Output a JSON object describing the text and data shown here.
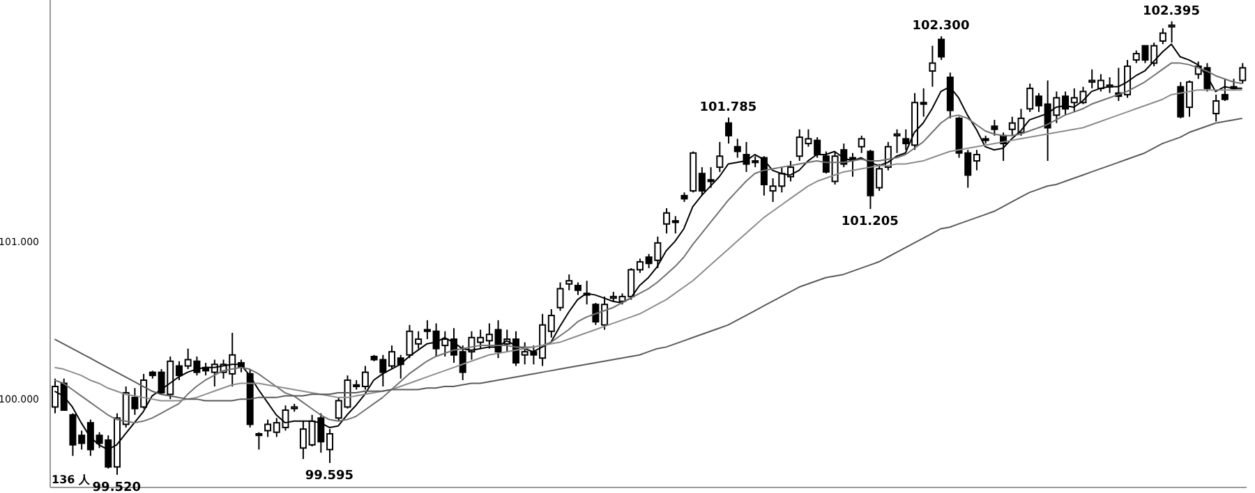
{
  "chart_data": {
    "type": "candlestick",
    "color": "#000000",
    "categories": [
      null,
      null,
      null,
      null,
      null,
      null,
      null,
      null,
      null,
      null,
      null,
      null,
      null,
      null,
      null,
      null,
      null,
      null,
      null,
      null,
      null,
      null,
      null,
      null,
      null,
      null,
      null,
      null,
      null,
      null,
      null,
      null,
      null,
      null,
      null,
      null,
      null,
      null,
      null,
      null,
      null,
      null,
      null,
      null,
      null,
      null,
      null,
      null,
      null,
      null,
      null,
      null,
      null,
      null,
      null,
      null,
      null,
      null,
      null,
      null,
      null,
      null,
      null,
      null,
      null,
      null,
      null,
      null,
      null,
      null,
      null,
      null,
      null,
      null,
      null,
      null,
      null,
      null,
      null,
      null,
      null,
      null,
      null,
      null,
      null,
      null,
      null,
      null,
      null,
      null,
      null,
      null,
      null,
      null,
      null,
      null,
      null,
      null,
      null,
      null,
      null,
      null,
      null,
      null,
      null,
      null,
      null,
      null,
      null,
      null,
      null,
      null,
      null,
      null,
      null,
      null,
      null,
      null,
      null,
      null,
      null,
      null,
      null,
      null,
      null,
      null,
      null,
      null,
      null,
      null,
      null,
      null,
      null,
      null,
      null
    ],
    "ohlc": [
      [
        99.95,
        100.13,
        99.91,
        100.08
      ],
      [
        100.1,
        100.13,
        99.93,
        99.93
      ],
      [
        99.9,
        99.91,
        99.64,
        99.71
      ],
      [
        99.77,
        99.8,
        99.68,
        99.72
      ],
      [
        99.85,
        99.87,
        99.64,
        99.68
      ],
      [
        99.77,
        99.79,
        99.69,
        99.72
      ],
      [
        99.74,
        99.77,
        99.56,
        99.57
      ],
      [
        99.57,
        99.91,
        99.52,
        99.88
      ],
      [
        99.84,
        100.08,
        99.82,
        100.04
      ],
      [
        100.01,
        100.07,
        99.9,
        99.94
      ],
      [
        99.95,
        100.16,
        99.94,
        100.12
      ],
      [
        100.17,
        100.18,
        100.13,
        100.15
      ],
      [
        100.17,
        100.19,
        100.03,
        100.04
      ],
      [
        100.03,
        100.27,
        100.0,
        100.24
      ],
      [
        100.21,
        100.24,
        100.12,
        100.15
      ],
      [
        100.21,
        100.32,
        100.19,
        100.25
      ],
      [
        100.24,
        100.27,
        100.15,
        100.17
      ],
      [
        100.2,
        100.23,
        100.15,
        100.18
      ],
      [
        100.17,
        100.25,
        100.08,
        100.22
      ],
      [
        100.17,
        100.25,
        100.13,
        100.22
      ],
      [
        100.16,
        100.42,
        100.08,
        100.28
      ],
      [
        100.23,
        100.25,
        100.17,
        100.2
      ],
      [
        100.16,
        100.19,
        99.82,
        99.84
      ],
      [
        99.78,
        99.79,
        99.68,
        99.77
      ],
      [
        99.8,
        99.87,
        99.76,
        99.84
      ],
      [
        99.79,
        99.88,
        99.76,
        99.85
      ],
      [
        99.82,
        99.96,
        99.8,
        99.93
      ],
      [
        99.94,
        99.97,
        99.92,
        99.95
      ],
      [
        99.69,
        99.86,
        99.62,
        99.81
      ],
      [
        99.71,
        99.9,
        99.7,
        99.86
      ],
      [
        99.88,
        99.91,
        99.66,
        99.73
      ],
      [
        99.68,
        99.81,
        99.595,
        99.78
      ],
      [
        99.88,
        100.01,
        99.86,
        99.99
      ],
      [
        99.95,
        100.15,
        99.94,
        100.12
      ],
      [
        100.09,
        100.12,
        100.06,
        100.08
      ],
      [
        100.08,
        100.21,
        100.06,
        100.17
      ],
      [
        100.27,
        100.28,
        100.24,
        100.25
      ],
      [
        100.25,
        100.28,
        100.08,
        100.17
      ],
      [
        100.21,
        100.34,
        100.19,
        100.3
      ],
      [
        100.26,
        100.28,
        100.13,
        100.22
      ],
      [
        100.28,
        100.47,
        100.26,
        100.43
      ],
      [
        100.35,
        100.43,
        100.32,
        100.38
      ],
      [
        100.44,
        100.5,
        100.38,
        100.43
      ],
      [
        100.43,
        100.48,
        100.27,
        100.32
      ],
      [
        100.34,
        100.43,
        100.27,
        100.38
      ],
      [
        100.38,
        100.45,
        100.23,
        100.28
      ],
      [
        100.3,
        100.34,
        100.12,
        100.17
      ],
      [
        100.3,
        100.43,
        100.25,
        100.39
      ],
      [
        100.36,
        100.44,
        100.32,
        100.39
      ],
      [
        100.37,
        100.48,
        100.32,
        100.41
      ],
      [
        100.44,
        100.5,
        100.26,
        100.3
      ],
      [
        100.35,
        100.44,
        100.3,
        100.38
      ],
      [
        100.38,
        100.43,
        100.21,
        100.23
      ],
      [
        100.28,
        100.36,
        100.22,
        100.3
      ],
      [
        100.3,
        100.34,
        100.22,
        100.28
      ],
      [
        100.26,
        100.54,
        100.21,
        100.47
      ],
      [
        100.43,
        100.57,
        100.39,
        100.53
      ],
      [
        100.58,
        100.74,
        100.56,
        100.7
      ],
      [
        100.73,
        100.79,
        100.69,
        100.75
      ],
      [
        100.72,
        100.74,
        100.66,
        100.69
      ],
      [
        100.67,
        100.75,
        100.6,
        100.66
      ],
      [
        100.6,
        100.61,
        100.47,
        100.49
      ],
      [
        100.47,
        100.65,
        100.44,
        100.6
      ],
      [
        100.64,
        100.68,
        100.62,
        100.65
      ],
      [
        100.62,
        100.67,
        100.6,
        100.65
      ],
      [
        100.65,
        100.83,
        100.63,
        100.82
      ],
      [
        100.82,
        100.89,
        100.8,
        100.87
      ],
      [
        100.9,
        100.92,
        100.83,
        100.86
      ],
      [
        100.88,
        101.03,
        100.83,
        100.99
      ],
      [
        101.11,
        101.21,
        101.05,
        101.18
      ],
      [
        101.13,
        101.16,
        101.05,
        101.12
      ],
      [
        101.29,
        101.31,
        101.25,
        101.27
      ],
      [
        101.32,
        101.57,
        101.31,
        101.56
      ],
      [
        101.43,
        101.47,
        101.29,
        101.32
      ],
      [
        101.39,
        101.47,
        101.34,
        101.38
      ],
      [
        101.47,
        101.63,
        101.44,
        101.54
      ],
      [
        101.75,
        101.785,
        101.62,
        101.67
      ],
      [
        101.6,
        101.65,
        101.53,
        101.57
      ],
      [
        101.55,
        101.63,
        101.44,
        101.49
      ],
      [
        101.51,
        101.54,
        101.47,
        101.5
      ],
      [
        101.53,
        101.54,
        101.29,
        101.36
      ],
      [
        101.32,
        101.4,
        101.25,
        101.35
      ],
      [
        101.35,
        101.47,
        101.31,
        101.43
      ],
      [
        101.41,
        101.51,
        101.38,
        101.47
      ],
      [
        101.54,
        101.71,
        101.51,
        101.66
      ],
      [
        101.62,
        101.71,
        101.6,
        101.65
      ],
      [
        101.64,
        101.66,
        101.53,
        101.55
      ],
      [
        101.54,
        101.57,
        101.43,
        101.44
      ],
      [
        101.38,
        101.57,
        101.36,
        101.54
      ],
      [
        101.58,
        101.62,
        101.47,
        101.49
      ],
      [
        101.53,
        101.56,
        101.41,
        101.52
      ],
      [
        101.6,
        101.67,
        101.56,
        101.65
      ],
      [
        101.57,
        101.58,
        101.205,
        101.29
      ],
      [
        101.34,
        101.49,
        101.32,
        101.46
      ],
      [
        101.47,
        101.63,
        101.45,
        101.6
      ],
      [
        101.67,
        101.71,
        101.56,
        101.68
      ],
      [
        101.65,
        101.71,
        101.58,
        101.62
      ],
      [
        101.61,
        101.94,
        101.58,
        101.88
      ],
      [
        101.88,
        101.97,
        101.79,
        101.87
      ],
      [
        102.08,
        102.24,
        101.98,
        102.13
      ],
      [
        102.28,
        102.3,
        102.15,
        102.17
      ],
      [
        102.04,
        102.07,
        101.78,
        101.83
      ],
      [
        101.78,
        101.79,
        101.53,
        101.56
      ],
      [
        101.56,
        101.58,
        101.34,
        101.42
      ],
      [
        101.51,
        101.58,
        101.45,
        101.55
      ],
      [
        101.65,
        101.67,
        101.62,
        101.64
      ],
      [
        101.73,
        101.77,
        101.67,
        101.71
      ],
      [
        101.67,
        101.69,
        101.51,
        101.62
      ],
      [
        101.71,
        101.79,
        101.67,
        101.75
      ],
      [
        101.69,
        101.84,
        101.67,
        101.78
      ],
      [
        101.84,
        102.0,
        101.82,
        101.97
      ],
      [
        101.92,
        101.94,
        101.82,
        101.86
      ],
      [
        101.87,
        102.02,
        101.51,
        101.72
      ],
      [
        101.8,
        101.95,
        101.75,
        101.91
      ],
      [
        101.92,
        101.95,
        101.8,
        101.84
      ],
      [
        101.88,
        101.97,
        101.82,
        101.91
      ],
      [
        101.88,
        101.98,
        101.87,
        101.95
      ],
      [
        102.01,
        102.09,
        101.97,
        102.02
      ],
      [
        101.97,
        102.06,
        101.95,
        102.02
      ],
      [
        101.98,
        102.04,
        101.94,
        101.99
      ],
      [
        101.94,
        102.1,
        101.89,
        101.92
      ],
      [
        101.93,
        102.15,
        101.91,
        102.11
      ],
      [
        102.15,
        102.21,
        102.13,
        102.19
      ],
      [
        102.24,
        102.24,
        102.13,
        102.15
      ],
      [
        102.13,
        102.26,
        102.11,
        102.24
      ],
      [
        102.27,
        102.35,
        102.25,
        102.32
      ],
      [
        102.36,
        102.395,
        102.26,
        102.37
      ],
      [
        101.98,
        102.01,
        101.78,
        101.79
      ],
      [
        101.85,
        102.02,
        101.79,
        102.01
      ],
      [
        102.06,
        102.14,
        102.03,
        102.11
      ],
      [
        102.1,
        102.13,
        101.95,
        101.97
      ],
      [
        101.81,
        101.93,
        101.76,
        101.89
      ],
      [
        101.93,
        102.03,
        101.89,
        101.9
      ],
      [
        101.98,
        102.03,
        101.96,
        101.97
      ],
      [
        102.02,
        102.13,
        102.0,
        102.1
      ]
    ],
    "series": [
      {
        "type": "line",
        "color": "#000000",
        "values": [
          100.05,
          100.02,
          99.95,
          99.85,
          99.76,
          99.71,
          99.68,
          99.71,
          99.78,
          99.85,
          99.92,
          100.02,
          100.06,
          100.1,
          100.14,
          100.17,
          100.19,
          100.2,
          100.2,
          100.21,
          100.22,
          100.22,
          100.15,
          100.06,
          99.98,
          99.9,
          99.85,
          99.86,
          99.86,
          99.86,
          99.85,
          99.82,
          99.83,
          99.9,
          99.96,
          100.03,
          100.12,
          100.16,
          100.19,
          100.22,
          100.27,
          100.31,
          100.35,
          100.36,
          100.39,
          100.36,
          100.32,
          100.31,
          100.32,
          100.33,
          100.33,
          100.37,
          100.34,
          100.32,
          100.3,
          100.33,
          100.36,
          100.46,
          100.55,
          100.63,
          100.67,
          100.66,
          100.64,
          100.62,
          100.61,
          100.64,
          100.72,
          100.77,
          100.84,
          100.94,
          101.0,
          101.08,
          101.22,
          101.29,
          101.35,
          101.41,
          101.49,
          101.5,
          101.51,
          101.55,
          101.52,
          101.45,
          101.43,
          101.42,
          101.45,
          101.51,
          101.55,
          101.55,
          101.57,
          101.53,
          101.51,
          101.53,
          101.5,
          101.48,
          101.5,
          101.54,
          101.56,
          101.69,
          101.75,
          101.84,
          101.95,
          101.98,
          101.91,
          101.8,
          101.71,
          101.6,
          101.58,
          101.59,
          101.65,
          101.7,
          101.77,
          101.79,
          101.81,
          101.85,
          101.86,
          101.85,
          101.89,
          101.95,
          101.97,
          101.98,
          101.98,
          102.01,
          102.05,
          102.08,
          102.14,
          102.2,
          102.25,
          102.17,
          102.15,
          102.12,
          102.05,
          101.95,
          101.98,
          101.97,
          101.97
        ]
      },
      {
        "type": "line",
        "color": "#707070",
        "values": [
          100.12,
          100.1,
          100.06,
          100.02,
          99.98,
          99.94,
          99.9,
          99.87,
          99.86,
          99.85,
          99.86,
          99.88,
          99.91,
          99.94,
          99.97,
          100.03,
          100.08,
          100.12,
          100.15,
          100.18,
          100.19,
          100.2,
          100.19,
          100.16,
          100.12,
          100.08,
          100.04,
          100.02,
          99.98,
          99.94,
          99.9,
          99.87,
          99.86,
          99.87,
          99.89,
          99.93,
          99.97,
          100.01,
          100.06,
          100.11,
          100.16,
          100.2,
          100.24,
          100.27,
          100.29,
          100.31,
          100.32,
          100.33,
          100.34,
          100.34,
          100.34,
          100.34,
          100.33,
          100.33,
          100.33,
          100.34,
          100.36,
          100.4,
          100.44,
          100.49,
          100.52,
          100.54,
          100.56,
          100.58,
          100.61,
          100.64,
          100.67,
          100.7,
          100.74,
          100.79,
          100.84,
          100.9,
          100.98,
          101.05,
          101.12,
          101.19,
          101.26,
          101.32,
          101.38,
          101.43,
          101.45,
          101.46,
          101.47,
          101.48,
          101.49,
          101.5,
          101.51,
          101.5,
          101.5,
          101.5,
          101.51,
          101.52,
          101.51,
          101.51,
          101.52,
          101.53,
          101.55,
          101.59,
          101.63,
          101.69,
          101.75,
          101.79,
          101.8,
          101.78,
          101.74,
          101.7,
          101.68,
          101.67,
          101.67,
          101.68,
          101.7,
          101.72,
          101.74,
          101.77,
          101.8,
          101.82,
          101.84,
          101.87,
          101.89,
          101.91,
          101.93,
          101.95,
          101.98,
          102.01,
          102.05,
          102.09,
          102.13,
          102.13,
          102.12,
          102.1,
          102.08,
          102.05,
          102.03,
          102.01,
          102.0
        ]
      },
      {
        "type": "line",
        "color": "#8c8c8c",
        "values": [
          100.2,
          100.19,
          100.17,
          100.15,
          100.12,
          100.1,
          100.07,
          100.05,
          100.03,
          100.02,
          100.01,
          100.0,
          99.99,
          99.99,
          99.99,
          100.0,
          100.01,
          100.03,
          100.05,
          100.07,
          100.09,
          100.1,
          100.1,
          100.1,
          100.09,
          100.08,
          100.07,
          100.06,
          100.05,
          100.04,
          100.03,
          100.02,
          100.01,
          100.01,
          100.02,
          100.03,
          100.04,
          100.05,
          100.06,
          100.08,
          100.1,
          100.12,
          100.14,
          100.16,
          100.18,
          100.2,
          100.22,
          100.24,
          100.26,
          100.28,
          100.29,
          100.3,
          100.31,
          100.32,
          100.33,
          100.34,
          100.35,
          100.36,
          100.38,
          100.4,
          100.42,
          100.44,
          100.46,
          100.48,
          100.5,
          100.52,
          100.54,
          100.57,
          100.6,
          100.63,
          100.67,
          100.71,
          100.75,
          100.8,
          100.85,
          100.9,
          100.95,
          101.0,
          101.05,
          101.1,
          101.15,
          101.19,
          101.23,
          101.27,
          101.31,
          101.35,
          101.38,
          101.4,
          101.42,
          101.44,
          101.45,
          101.46,
          101.47,
          101.48,
          101.48,
          101.49,
          101.49,
          101.5,
          101.51,
          101.53,
          101.55,
          101.57,
          101.58,
          101.59,
          101.6,
          101.61,
          101.62,
          101.63,
          101.64,
          101.65,
          101.66,
          101.67,
          101.68,
          101.69,
          101.7,
          101.71,
          101.72,
          101.74,
          101.76,
          101.78,
          101.8,
          101.82,
          101.84,
          101.86,
          101.88,
          101.9,
          101.93,
          101.94,
          101.95,
          101.96,
          101.96,
          101.96,
          101.96,
          101.96,
          101.96
        ]
      },
      {
        "type": "line",
        "color": "#5a5a5a",
        "values": [
          100.38,
          100.35,
          100.32,
          100.29,
          100.26,
          100.23,
          100.2,
          100.17,
          100.14,
          100.11,
          100.08,
          100.05,
          100.03,
          100.02,
          100.01,
          100.0,
          100.0,
          99.99,
          99.99,
          99.99,
          99.99,
          100.0,
          100.0,
          100.01,
          100.01,
          100.01,
          100.02,
          100.02,
          100.02,
          100.03,
          100.03,
          100.03,
          100.04,
          100.04,
          100.04,
          100.05,
          100.05,
          100.05,
          100.06,
          100.06,
          100.06,
          100.06,
          100.07,
          100.07,
          100.08,
          100.08,
          100.09,
          100.1,
          100.1,
          100.11,
          100.12,
          100.13,
          100.14,
          100.15,
          100.16,
          100.17,
          100.18,
          100.19,
          100.2,
          100.21,
          100.22,
          100.23,
          100.24,
          100.25,
          100.26,
          100.27,
          100.28,
          100.3,
          100.32,
          100.33,
          100.35,
          100.37,
          100.39,
          100.41,
          100.43,
          100.45,
          100.47,
          100.5,
          100.53,
          100.56,
          100.59,
          100.62,
          100.65,
          100.68,
          100.71,
          100.73,
          100.75,
          100.77,
          100.78,
          100.79,
          100.81,
          100.83,
          100.85,
          100.87,
          100.9,
          100.93,
          100.96,
          100.99,
          101.02,
          101.05,
          101.08,
          101.09,
          101.11,
          101.13,
          101.15,
          101.17,
          101.19,
          101.22,
          101.25,
          101.28,
          101.31,
          101.33,
          101.35,
          101.36,
          101.38,
          101.4,
          101.42,
          101.44,
          101.46,
          101.48,
          101.5,
          101.52,
          101.54,
          101.56,
          101.59,
          101.62,
          101.64,
          101.66,
          101.69,
          101.71,
          101.73,
          101.75,
          101.76,
          101.77,
          101.78
        ]
      }
    ],
    "ylim": [
      99.44,
      102.53
    ],
    "yticks": [
      {
        "value": 100,
        "label": "100.000"
      },
      {
        "value": 101,
        "label": "101.000"
      }
    ],
    "tick_labels": "y",
    "annotations": [
      "136 人",
      {
        "text": "99.520",
        "y": 99.52
      },
      {
        "text": "99.595",
        "y": 99.595
      },
      {
        "text": "101.785",
        "y": 101.785
      },
      {
        "text": "101.205",
        "y": 101.205
      },
      {
        "text": "102.300",
        "y": 102.3
      },
      {
        "text": "102.395",
        "y": 102.395
      }
    ]
  }
}
